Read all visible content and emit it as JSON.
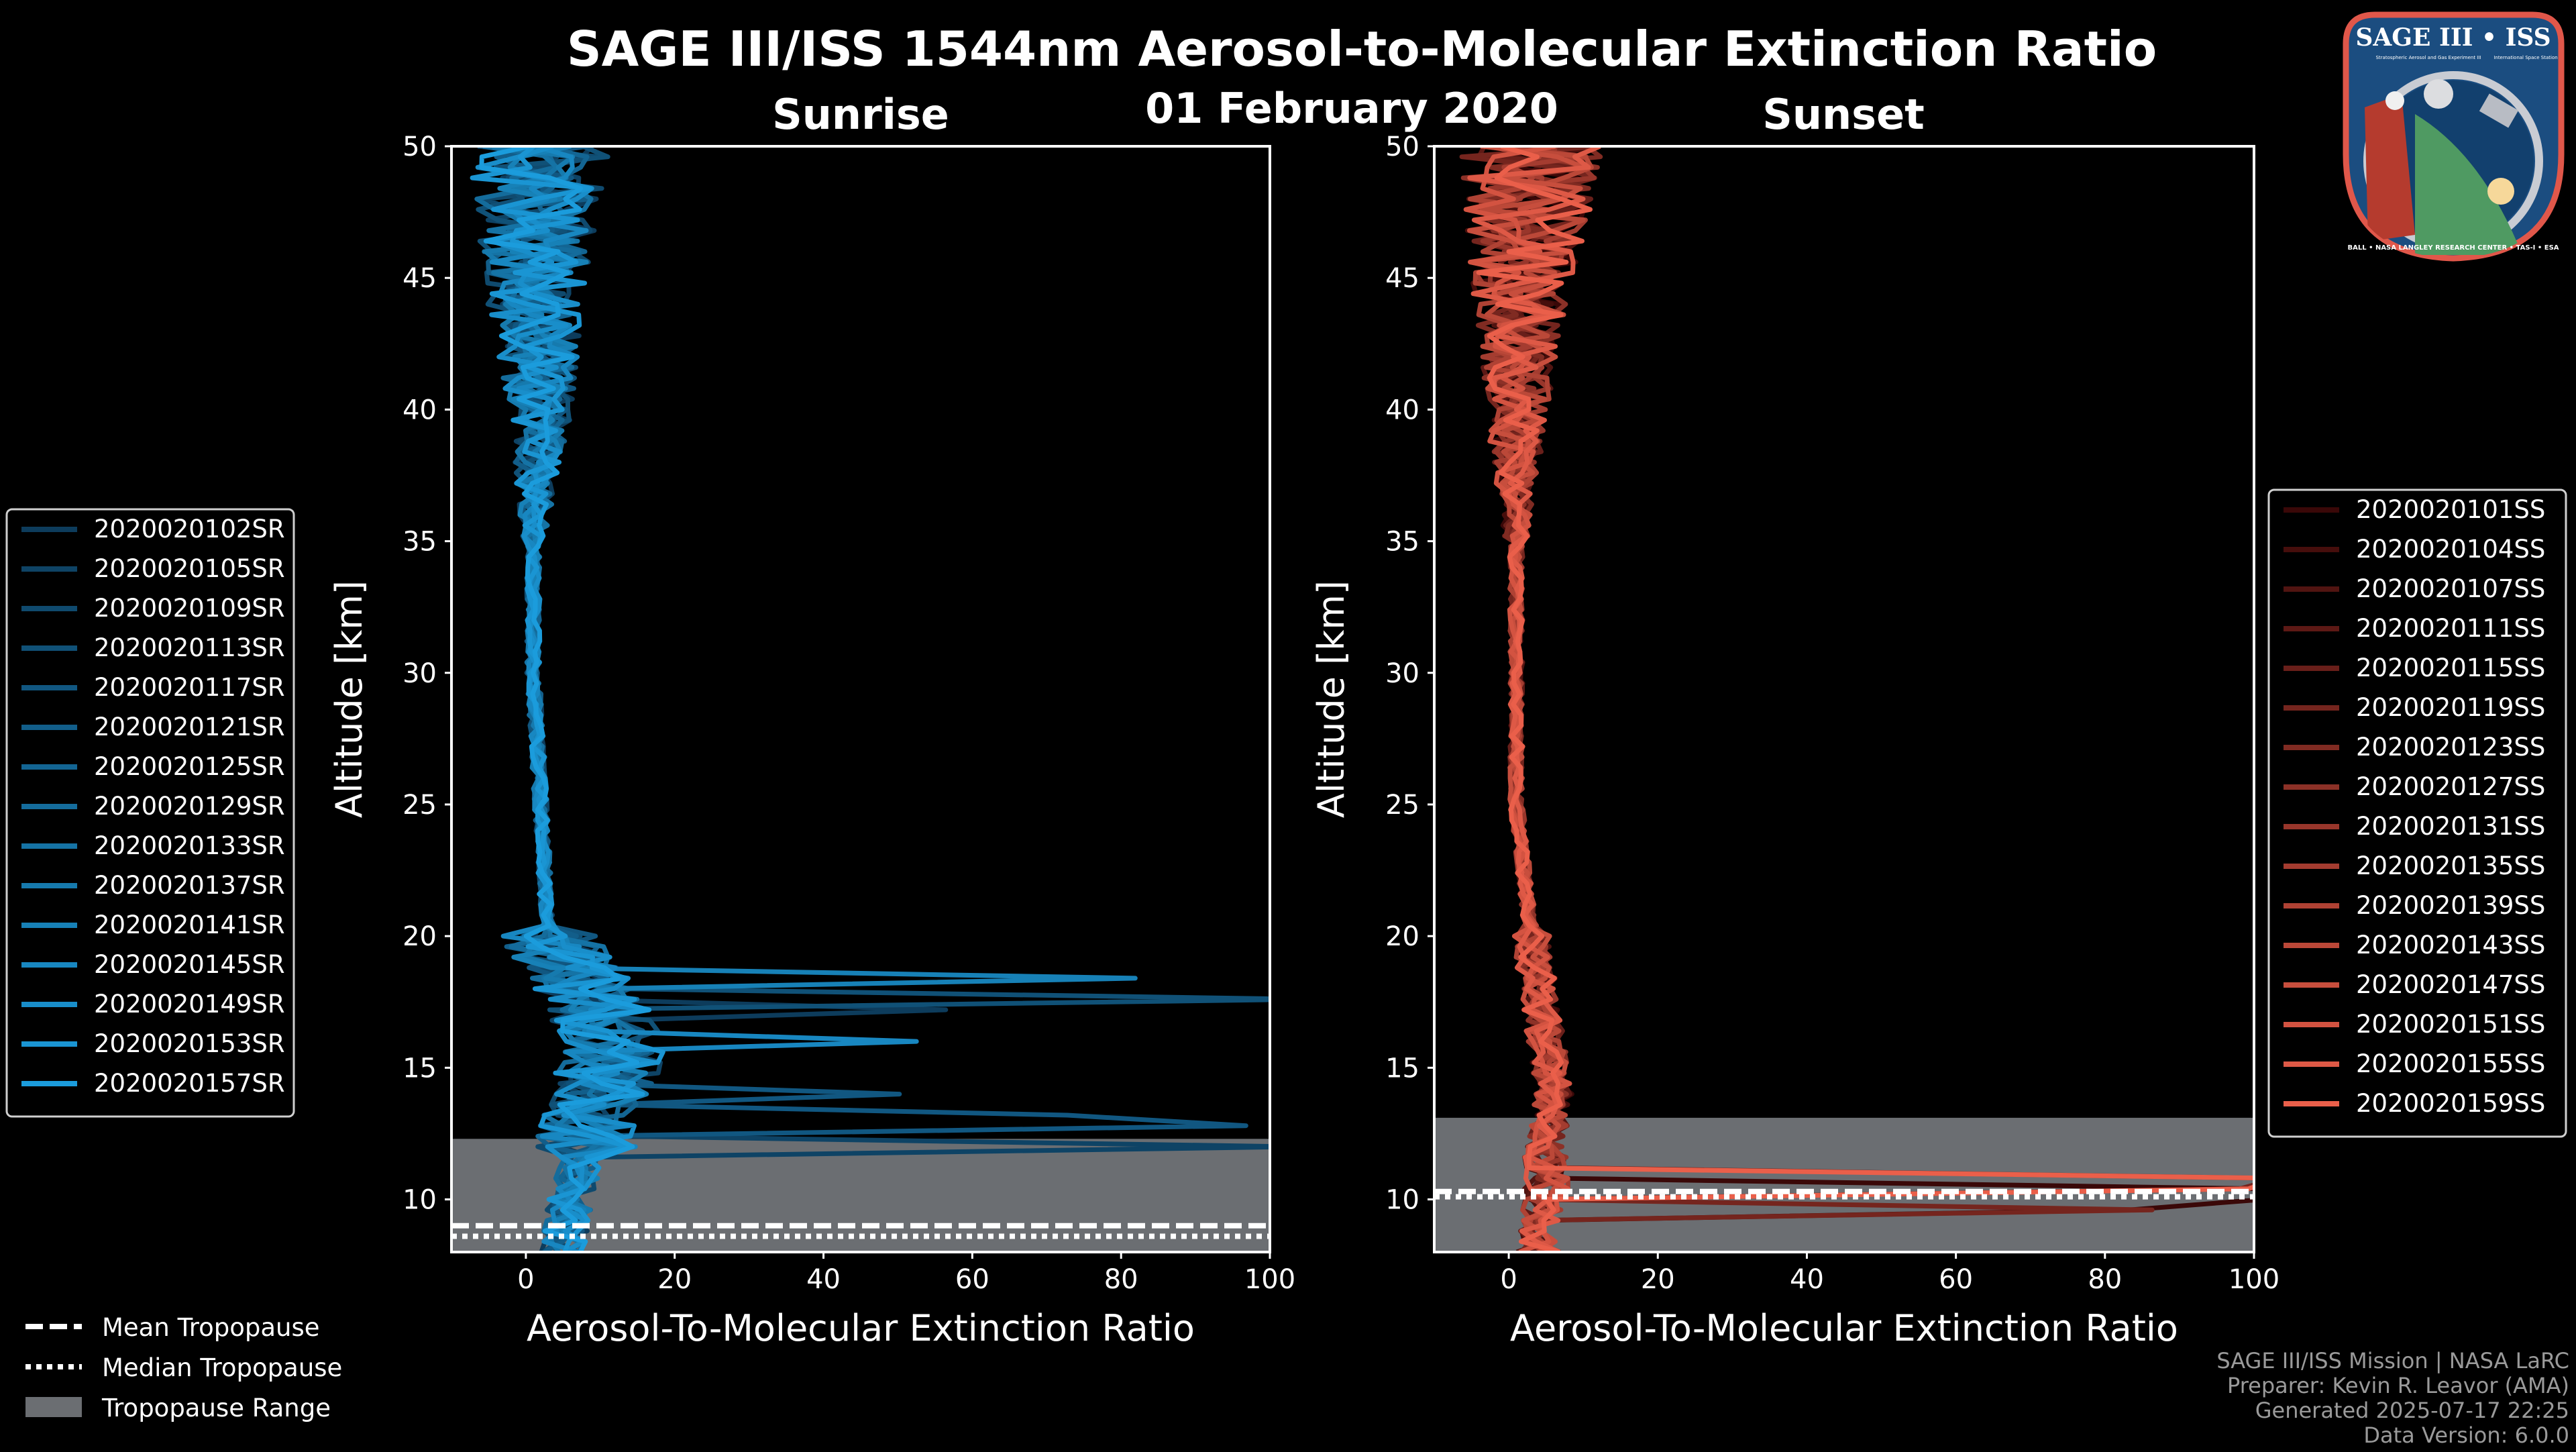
{
  "title": "SAGE III/ISS 1544nm Aerosol-to-Molecular Extinction Ratio",
  "date": "01 February 2020",
  "logo": {
    "text": "SAGE III • ISS",
    "sub_left": "Stratospheric Aerosol and Gas Experiment III",
    "sub_right": "International Space Station",
    "ring": "BALL • NASA LANGLEY RESEARCH CENTER • TAS-I • ESA"
  },
  "footer": [
    "SAGE III/ISS Mission | NASA LaRC",
    "Preparer: Kevin R. Leavor (AMA)",
    "Generated 2025-07-17 22:25",
    "Data Version: 6.0.0"
  ],
  "common_legend": [
    "Mean Tropopause",
    "Median Tropopause",
    "Tropopause Range"
  ],
  "chart_data": [
    {
      "type": "line",
      "title": "Sunrise",
      "xlabel": "Aerosol-To-Molecular Extinction Ratio",
      "ylabel": "Altitude [km]",
      "xlim": [
        -10,
        100
      ],
      "ylim": [
        8,
        50
      ],
      "xticks": [
        "0",
        "20",
        "40",
        "60",
        "80",
        "100"
      ],
      "yticks": [
        "10",
        "15",
        "20",
        "25",
        "30",
        "35",
        "40",
        "45",
        "50"
      ],
      "legend_position": "outside-left",
      "color_start": "#0d3c5c",
      "color_end": "#1b9cdc",
      "tropopause": {
        "mean": 9.0,
        "median": 8.6,
        "range": [
          8,
          12.3
        ]
      },
      "representative_profile": {
        "altitude": [
          8,
          10,
          12,
          14,
          16,
          18,
          20,
          25,
          30,
          35,
          40,
          45,
          50
        ],
        "ratio": [
          5,
          6,
          8,
          10,
          12,
          8,
          3,
          2,
          1,
          1,
          2,
          1,
          2
        ]
      },
      "series": [
        "2020020102SR",
        "2020020105SR",
        "2020020109SR",
        "2020020113SR",
        "2020020117SR",
        "2020020121SR",
        "2020020125SR",
        "2020020129SR",
        "2020020133SR",
        "2020020137SR",
        "2020020141SR",
        "2020020145SR",
        "2020020149SR",
        "2020020153SR",
        "2020020157SR"
      ]
    },
    {
      "type": "line",
      "title": "Sunset",
      "xlabel": "Aerosol-To-Molecular Extinction Ratio",
      "ylabel": "Altitude [km]",
      "xlim": [
        -10,
        100
      ],
      "ylim": [
        8,
        50
      ],
      "xticks": [
        "0",
        "20",
        "40",
        "60",
        "80",
        "100"
      ],
      "yticks": [
        "10",
        "15",
        "20",
        "25",
        "30",
        "35",
        "40",
        "45",
        "50"
      ],
      "legend_position": "outside-right",
      "color_start": "#3a0808",
      "color_end": "#ea5f4a",
      "tropopause": {
        "mean": 10.3,
        "median": 10.1,
        "range": [
          8,
          13.1
        ]
      },
      "representative_profile": {
        "altitude": [
          8,
          10,
          12,
          14,
          16,
          18,
          20,
          25,
          30,
          35,
          40,
          45,
          50
        ],
        "ratio": [
          4,
          5,
          5,
          6,
          5,
          4,
          3,
          1,
          1,
          1,
          1,
          2,
          3
        ]
      },
      "series": [
        "2020020101SS",
        "2020020104SS",
        "2020020107SS",
        "2020020111SS",
        "2020020115SS",
        "2020020119SS",
        "2020020123SS",
        "2020020127SS",
        "2020020131SS",
        "2020020135SS",
        "2020020139SS",
        "2020020143SS",
        "2020020147SS",
        "2020020151SS",
        "2020020155SS",
        "2020020159SS"
      ]
    }
  ]
}
